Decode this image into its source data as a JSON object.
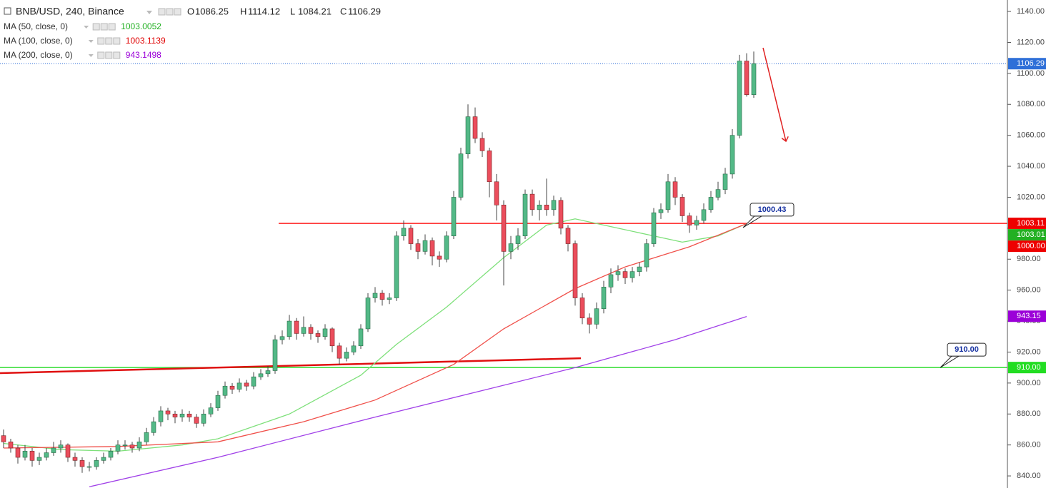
{
  "chart_data": {
    "type": "candlestick",
    "symbol": "BNB/USD, 240, Binance",
    "ohlc_labels": [
      "O",
      "H",
      "L",
      "C"
    ],
    "up_color": "#53b987",
    "down_color": "#eb4d5c",
    "candles": [
      [
        866,
        870,
        858,
        862
      ],
      [
        862,
        864,
        855,
        858
      ],
      [
        858,
        860,
        848,
        852
      ],
      [
        852,
        860,
        850,
        856
      ],
      [
        856,
        858,
        846,
        850
      ],
      [
        850,
        855,
        847,
        852
      ],
      [
        852,
        858,
        850,
        855
      ],
      [
        855,
        862,
        853,
        858
      ],
      [
        858,
        863,
        855,
        860
      ],
      [
        860,
        861,
        849,
        852
      ],
      [
        852,
        855,
        846,
        850
      ],
      [
        850,
        852,
        842,
        846
      ],
      [
        846,
        849,
        843,
        846
      ],
      [
        846,
        852,
        844,
        850
      ],
      [
        850,
        855,
        848,
        852
      ],
      [
        852,
        858,
        850,
        856
      ],
      [
        856,
        863,
        854,
        860
      ],
      [
        860,
        863,
        857,
        860
      ],
      [
        860,
        862,
        855,
        858
      ],
      [
        858,
        865,
        856,
        862
      ],
      [
        862,
        871,
        860,
        868
      ],
      [
        868,
        878,
        866,
        875
      ],
      [
        875,
        885,
        872,
        882
      ],
      [
        882,
        884,
        876,
        880
      ],
      [
        880,
        882,
        874,
        878
      ],
      [
        878,
        883,
        875,
        880
      ],
      [
        880,
        882,
        875,
        878
      ],
      [
        878,
        880,
        871,
        874
      ],
      [
        874,
        883,
        872,
        880
      ],
      [
        880,
        887,
        878,
        884
      ],
      [
        884,
        895,
        882,
        892
      ],
      [
        892,
        901,
        890,
        898
      ],
      [
        898,
        900,
        893,
        896
      ],
      [
        896,
        903,
        894,
        900
      ],
      [
        900,
        902,
        895,
        898
      ],
      [
        898,
        907,
        896,
        904
      ],
      [
        904,
        909,
        902,
        906
      ],
      [
        906,
        911,
        904,
        908
      ],
      [
        908,
        931,
        906,
        928
      ],
      [
        928,
        934,
        925,
        930
      ],
      [
        930,
        944,
        928,
        940
      ],
      [
        940,
        942,
        928,
        932
      ],
      [
        932,
        943,
        930,
        936
      ],
      [
        936,
        938,
        928,
        932
      ],
      [
        932,
        934,
        926,
        930
      ],
      [
        930,
        938,
        928,
        935
      ],
      [
        935,
        936,
        920,
        924
      ],
      [
        924,
        926,
        912,
        916
      ],
      [
        916,
        923,
        914,
        920
      ],
      [
        920,
        927,
        918,
        924
      ],
      [
        924,
        938,
        922,
        935
      ],
      [
        935,
        958,
        933,
        955
      ],
      [
        955,
        962,
        952,
        958
      ],
      [
        958,
        960,
        950,
        954
      ],
      [
        954,
        958,
        951,
        955
      ],
      [
        955,
        998,
        953,
        995
      ],
      [
        995,
        1005,
        992,
        1000
      ],
      [
        1000,
        1002,
        986,
        990
      ],
      [
        990,
        993,
        980,
        985
      ],
      [
        985,
        996,
        983,
        992
      ],
      [
        992,
        994,
        976,
        982
      ],
      [
        982,
        985,
        975,
        980
      ],
      [
        980,
        998,
        978,
        995
      ],
      [
        995,
        1024,
        993,
        1020
      ],
      [
        1020,
        1052,
        1018,
        1048
      ],
      [
        1048,
        1080,
        1045,
        1072
      ],
      [
        1072,
        1078,
        1055,
        1058
      ],
      [
        1058,
        1062,
        1046,
        1050
      ],
      [
        1050,
        1052,
        1020,
        1030
      ],
      [
        1030,
        1035,
        1005,
        1015
      ],
      [
        1015,
        1018,
        963,
        985
      ],
      [
        985,
        995,
        980,
        990
      ],
      [
        990,
        1000,
        986,
        995
      ],
      [
        995,
        1025,
        993,
        1022
      ],
      [
        1022,
        1025,
        1008,
        1012
      ],
      [
        1012,
        1018,
        1005,
        1015
      ],
      [
        1015,
        1032,
        1008,
        1012
      ],
      [
        1012,
        1021,
        1008,
        1018
      ],
      [
        1018,
        1020,
        996,
        1000
      ],
      [
        1000,
        1002,
        985,
        990
      ],
      [
        990,
        992,
        950,
        955
      ],
      [
        955,
        958,
        938,
        942
      ],
      [
        942,
        945,
        932,
        938
      ],
      [
        938,
        952,
        935,
        948
      ],
      [
        948,
        966,
        945,
        962
      ],
      [
        962,
        974,
        958,
        970
      ],
      [
        970,
        976,
        966,
        972
      ],
      [
        972,
        974,
        964,
        968
      ],
      [
        968,
        975,
        965,
        972
      ],
      [
        972,
        978,
        969,
        975
      ],
      [
        975,
        993,
        972,
        990
      ],
      [
        990,
        1013,
        988,
        1010
      ],
      [
        1010,
        1016,
        1006,
        1012
      ],
      [
        1012,
        1035,
        1010,
        1030
      ],
      [
        1030,
        1033,
        1015,
        1020
      ],
      [
        1020,
        1022,
        1004,
        1008
      ],
      [
        1008,
        1010,
        997,
        1002
      ],
      [
        1002,
        1008,
        999,
        1005
      ],
      [
        1005,
        1016,
        1003,
        1012
      ],
      [
        1012,
        1024,
        1010,
        1020
      ],
      [
        1020,
        1030,
        1018,
        1025
      ],
      [
        1025,
        1039,
        1022,
        1035
      ],
      [
        1035,
        1064,
        1032,
        1060
      ],
      [
        1060,
        1112,
        1058,
        1108
      ],
      [
        1108,
        1113,
        1085,
        1086.25
      ],
      [
        1086.25,
        1114.12,
        1084.21,
        1106.29
      ]
    ],
    "series": [
      {
        "name": "MA (50, close, 0)",
        "color": "#7ee07a",
        "label_color": "#22b022",
        "last_value": 1003.0052,
        "x": [
          0,
          8,
          16,
          25,
          30,
          40,
          50,
          55,
          62,
          70,
          76,
          80,
          87,
          95,
          100,
          104
        ],
        "values": [
          861,
          857,
          856,
          860,
          864,
          880,
          905,
          925,
          949,
          981,
          1002,
          1006,
          999,
          991,
          995,
          1003
        ]
      },
      {
        "name": "MA (100, close, 0)",
        "color": "#f0504a",
        "label_color": "#e00000",
        "last_value": 1003.1139,
        "x": [
          0,
          16,
          30,
          42,
          52,
          63,
          70,
          80,
          87,
          96,
          104
        ],
        "values": [
          858,
          859,
          862,
          875,
          889,
          912,
          935,
          961,
          975,
          988,
          1003
        ]
      },
      {
        "name": "MA (200, close, 0)",
        "color": "#a040e8",
        "label_color": "#9b00d8",
        "last_value": 943.1498,
        "x": [
          12,
          30,
          52,
          80,
          94,
          104
        ],
        "values": [
          833,
          852,
          878,
          910,
          928,
          943
        ]
      }
    ],
    "xlim": [
      -0.5,
      140.5
    ],
    "ylim": [
      832.2,
      1147.4
    ],
    "yticks": [
      {
        "value": 840,
        "label": "840.00"
      },
      {
        "value": 860,
        "label": "860.00"
      },
      {
        "value": 880,
        "label": "880.00"
      },
      {
        "value": 900,
        "label": "900.00"
      },
      {
        "value": 920,
        "label": "920.00"
      },
      {
        "value": 940,
        "label": "940.00"
      },
      {
        "value": 960,
        "label": "960.00"
      },
      {
        "value": 980,
        "label": "980.00"
      },
      {
        "value": 1000,
        "label": "1000.00"
      },
      {
        "value": 1020,
        "label": "1020.00"
      },
      {
        "value": 1040,
        "label": "1040.00"
      },
      {
        "value": 1060,
        "label": "1060.00"
      },
      {
        "value": 1080,
        "label": "1080.00"
      },
      {
        "value": 1100,
        "label": "1100.00"
      },
      {
        "value": 1120,
        "label": "1120.00"
      },
      {
        "value": 1140,
        "label": "1140.00"
      }
    ],
    "horizontal_lines": [
      {
        "value": 1003.11,
        "from": 38.5,
        "color": "#ff2020"
      },
      {
        "value": 910,
        "from": -0.5,
        "color": "#33dd33"
      }
    ],
    "trend_line": {
      "x": [
        -0.5,
        80.8
      ],
      "values": [
        906.4,
        916
      ],
      "color": "#e01010"
    },
    "callouts": [
      {
        "value": 1000.43,
        "label": "1000.43",
        "x": 103.5
      },
      {
        "value": 910,
        "label": "910.00",
        "x": 131.1
      }
    ],
    "price_tags": [
      {
        "value": 1106.29,
        "label": "1106.29",
        "color": "#2e6fd8"
      },
      {
        "value": 1003.11,
        "label": "1003.11",
        "color": "#ee0000"
      },
      {
        "value": 1003.01,
        "label": "1003.01",
        "color": "#22b022"
      },
      {
        "value": 1000,
        "label": "1000.00",
        "color": "#ee0000"
      },
      {
        "value": 943.15,
        "label": "943.15",
        "color": "#9b00d8"
      },
      {
        "value": 910,
        "label": "910.00",
        "color": "#22dd22"
      }
    ]
  }
}
